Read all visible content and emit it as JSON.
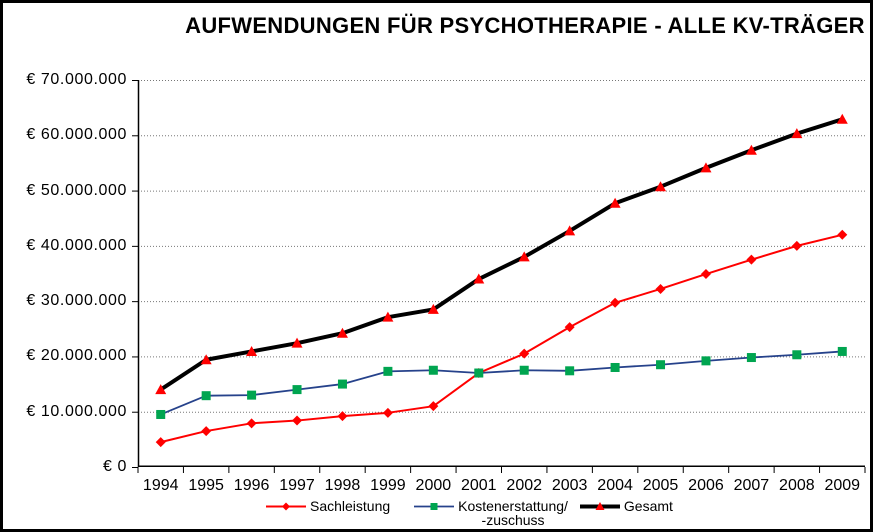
{
  "window": {
    "background": "#ffffff",
    "frame_color": "#000000"
  },
  "chart_data": {
    "type": "line",
    "title": "AUFWENDUNGEN FÜR PSYCHOTHERAPIE - ALLE KV-TRÄGER",
    "categories": [
      "1994",
      "1995",
      "1996",
      "1997",
      "1998",
      "1999",
      "2000",
      "2001",
      "2002",
      "2003",
      "2004",
      "2005",
      "2006",
      "2007",
      "2008",
      "2009"
    ],
    "series": [
      {
        "name": "Sachleistung",
        "legend_label": "Sachleistung",
        "color": "#ff0000",
        "marker": "diamond",
        "marker_color": "#ff0000",
        "line_width": 2,
        "values": [
          4500000,
          6500000,
          7900000,
          8400000,
          9200000,
          9800000,
          11000000,
          17000000,
          20500000,
          25300000,
          29700000,
          32200000,
          34900000,
          37500000,
          40000000,
          42000000
        ]
      },
      {
        "name": "Kostenerstattung/-zuschuss",
        "legend_label": "Kostenerstattung/\n-zuschuss",
        "color": "#26428b",
        "marker": "square",
        "marker_color": "#00a550",
        "line_width": 1.8,
        "values": [
          9500000,
          12900000,
          13000000,
          14000000,
          15000000,
          17300000,
          17500000,
          17000000,
          17500000,
          17400000,
          18000000,
          18500000,
          19200000,
          19800000,
          20300000,
          20900000
        ]
      },
      {
        "name": "Gesamt",
        "legend_label": "Gesamt",
        "color": "#000000",
        "marker": "triangle",
        "marker_color": "#ff0000",
        "line_width": 4,
        "values": [
          14000000,
          19400000,
          20900000,
          22400000,
          24200000,
          27100000,
          28500000,
          34000000,
          38000000,
          42700000,
          47700000,
          50700000,
          54100000,
          57300000,
          60300000,
          62900000
        ]
      }
    ],
    "y_axis": {
      "ticks": [
        {
          "label": "€ 70.000.000",
          "value": 70000000
        },
        {
          "label": "€ 60.000.000",
          "value": 60000000
        },
        {
          "label": "€ 50.000.000",
          "value": 50000000
        },
        {
          "label": "€ 40.000.000",
          "value": 40000000
        },
        {
          "label": "€ 30.000.000",
          "value": 30000000
        },
        {
          "label": "€ 20.000.000",
          "value": 20000000
        },
        {
          "label": "€ 10.000.000",
          "value": 10000000
        },
        {
          "label": "€ 0",
          "value": 0
        }
      ]
    },
    "ylim": [
      0,
      70000000
    ],
    "grid": true,
    "gridline_color": "#777777",
    "axis_color": "#000000",
    "legend_position": "bottom"
  }
}
